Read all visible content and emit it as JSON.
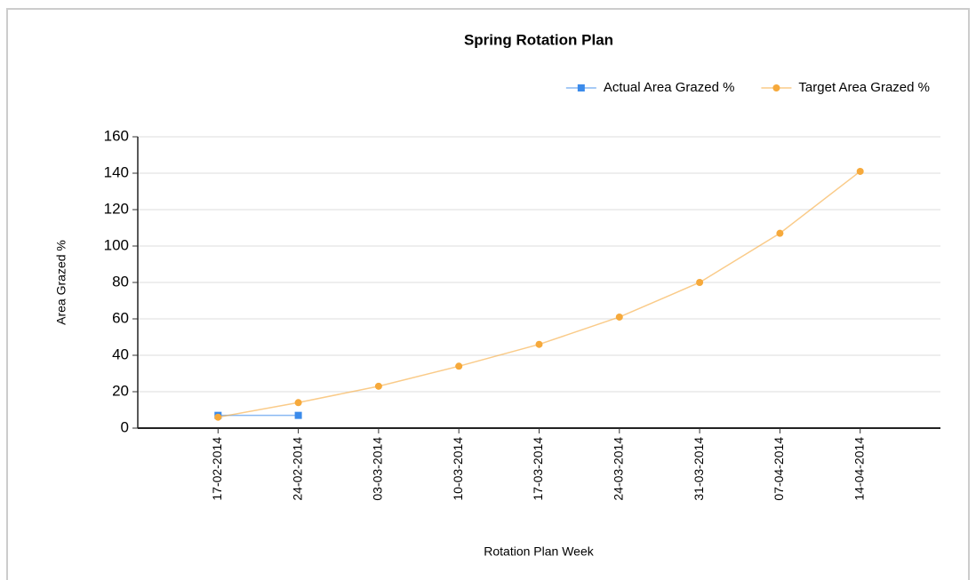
{
  "chart_data": {
    "type": "line",
    "title": "Spring Rotation Plan",
    "x_label": "Rotation Plan Week",
    "y_label": "Area Grazed %",
    "categories": [
      "17-02-2014",
      "24-02-2014",
      "03-03-2014",
      "10-03-2014",
      "17-03-2014",
      "24-03-2014",
      "31-03-2014",
      "07-04-2014",
      "14-04-2014"
    ],
    "series": [
      {
        "name": "Actual Area Grazed %",
        "color": "#3b8beb",
        "marker": "square",
        "values": [
          7,
          7,
          null,
          null,
          null,
          null,
          null,
          null,
          null
        ]
      },
      {
        "name": "Target Area Grazed %",
        "color": "#f6a93b",
        "marker": "circle",
        "values": [
          6,
          14,
          23,
          34,
          46,
          61,
          80,
          107,
          141
        ]
      }
    ],
    "ylim": [
      0,
      160
    ],
    "yticks": [
      0,
      20,
      40,
      60,
      80,
      100,
      120,
      140,
      160
    ],
    "grid": true,
    "legend": "top-right"
  }
}
